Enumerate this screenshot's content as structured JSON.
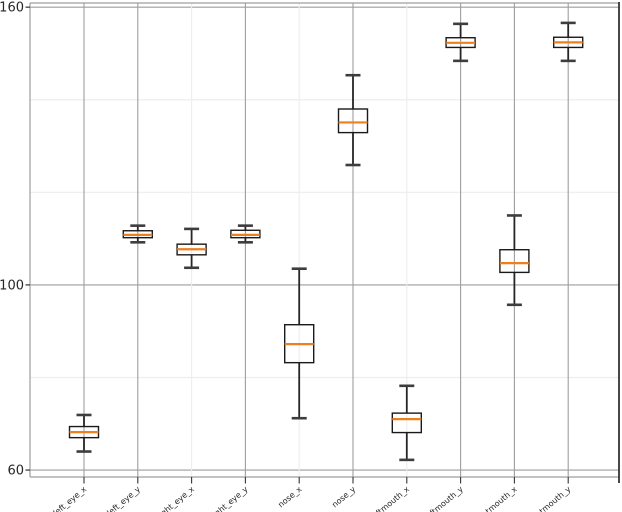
{
  "figure": {
    "background": "#ffffff"
  },
  "chart_data": {
    "type": "boxplot",
    "title": "",
    "xlabel": "",
    "ylabel": "",
    "orientation": "vertical",
    "grid": "on",
    "legend": "none",
    "categories": [
      "left_eye_x",
      "left_eye_y",
      "right_eye_x",
      "right_eye_y",
      "nose_x",
      "nose_y",
      "leftmouth_x",
      "leftmouth_y",
      "rightmouth_x",
      "rightmouth_y"
    ],
    "boxes": [
      {
        "category": "left_eye_x",
        "whisker_low": 64.0,
        "q1": 67.0,
        "median": 68.2,
        "q3": 69.4,
        "whisker_high": 71.9
      },
      {
        "category": "left_eye_y",
        "whisker_low": 109.2,
        "q1": 110.2,
        "median": 110.8,
        "q3": 111.7,
        "whisker_high": 112.8
      },
      {
        "category": "right_eye_x",
        "whisker_low": 103.7,
        "q1": 106.5,
        "median": 107.7,
        "q3": 108.8,
        "whisker_high": 112.1
      },
      {
        "category": "right_eye_y",
        "whisker_low": 109.2,
        "q1": 110.2,
        "median": 110.8,
        "q3": 111.8,
        "whisker_high": 112.8
      },
      {
        "category": "nose_x",
        "whisker_low": 71.2,
        "q1": 83.2,
        "median": 87.2,
        "q3": 91.4,
        "whisker_high": 103.5
      },
      {
        "category": "nose_y",
        "whisker_low": 125.9,
        "q1": 132.9,
        "median": 135.1,
        "q3": 138.0,
        "whisker_high": 145.3
      },
      {
        "category": "leftmouth_x",
        "whisker_low": 62.2,
        "q1": 68.1,
        "median": 71.0,
        "q3": 72.3,
        "whisker_high": 78.2
      },
      {
        "category": "leftmouth_y",
        "whisker_low": 148.4,
        "q1": 151.3,
        "median": 152.3,
        "q3": 153.4,
        "whisker_high": 156.4
      },
      {
        "category": "rightmouth_x",
        "whisker_low": 95.7,
        "q1": 102.7,
        "median": 104.7,
        "q3": 107.6,
        "whisker_high": 115.0
      },
      {
        "category": "rightmouth_y",
        "whisker_low": 148.4,
        "q1": 151.3,
        "median": 152.4,
        "q3": 153.5,
        "whisker_high": 156.6
      }
    ],
    "y_axis": {
      "tick_labels": [
        "60",
        "100",
        "160"
      ],
      "tick_values": [
        60,
        100,
        160
      ],
      "minor_gridlines": [
        80,
        120,
        140
      ],
      "ylim": [
        58.5,
        160.9
      ]
    },
    "x_axis": {
      "tick_label_rotation_deg": -40,
      "gridline_emphasis": [
        "major",
        "major",
        "minor",
        "major",
        "minor",
        "major",
        "minor",
        "major",
        "major",
        "major"
      ]
    },
    "colors": {
      "median": "#ee7f1e",
      "box_edge": "#1a1a1a",
      "whisker": "#262626",
      "cap": "#3d3d3d",
      "grid_major": "#9e9e9e",
      "grid_minor": "#ededed",
      "panel_border": "#9e9e9e",
      "panel_border_right": "#333333",
      "tick_mark": "#333333",
      "tick_label_color": "#262626",
      "background": "#ffffff"
    }
  }
}
